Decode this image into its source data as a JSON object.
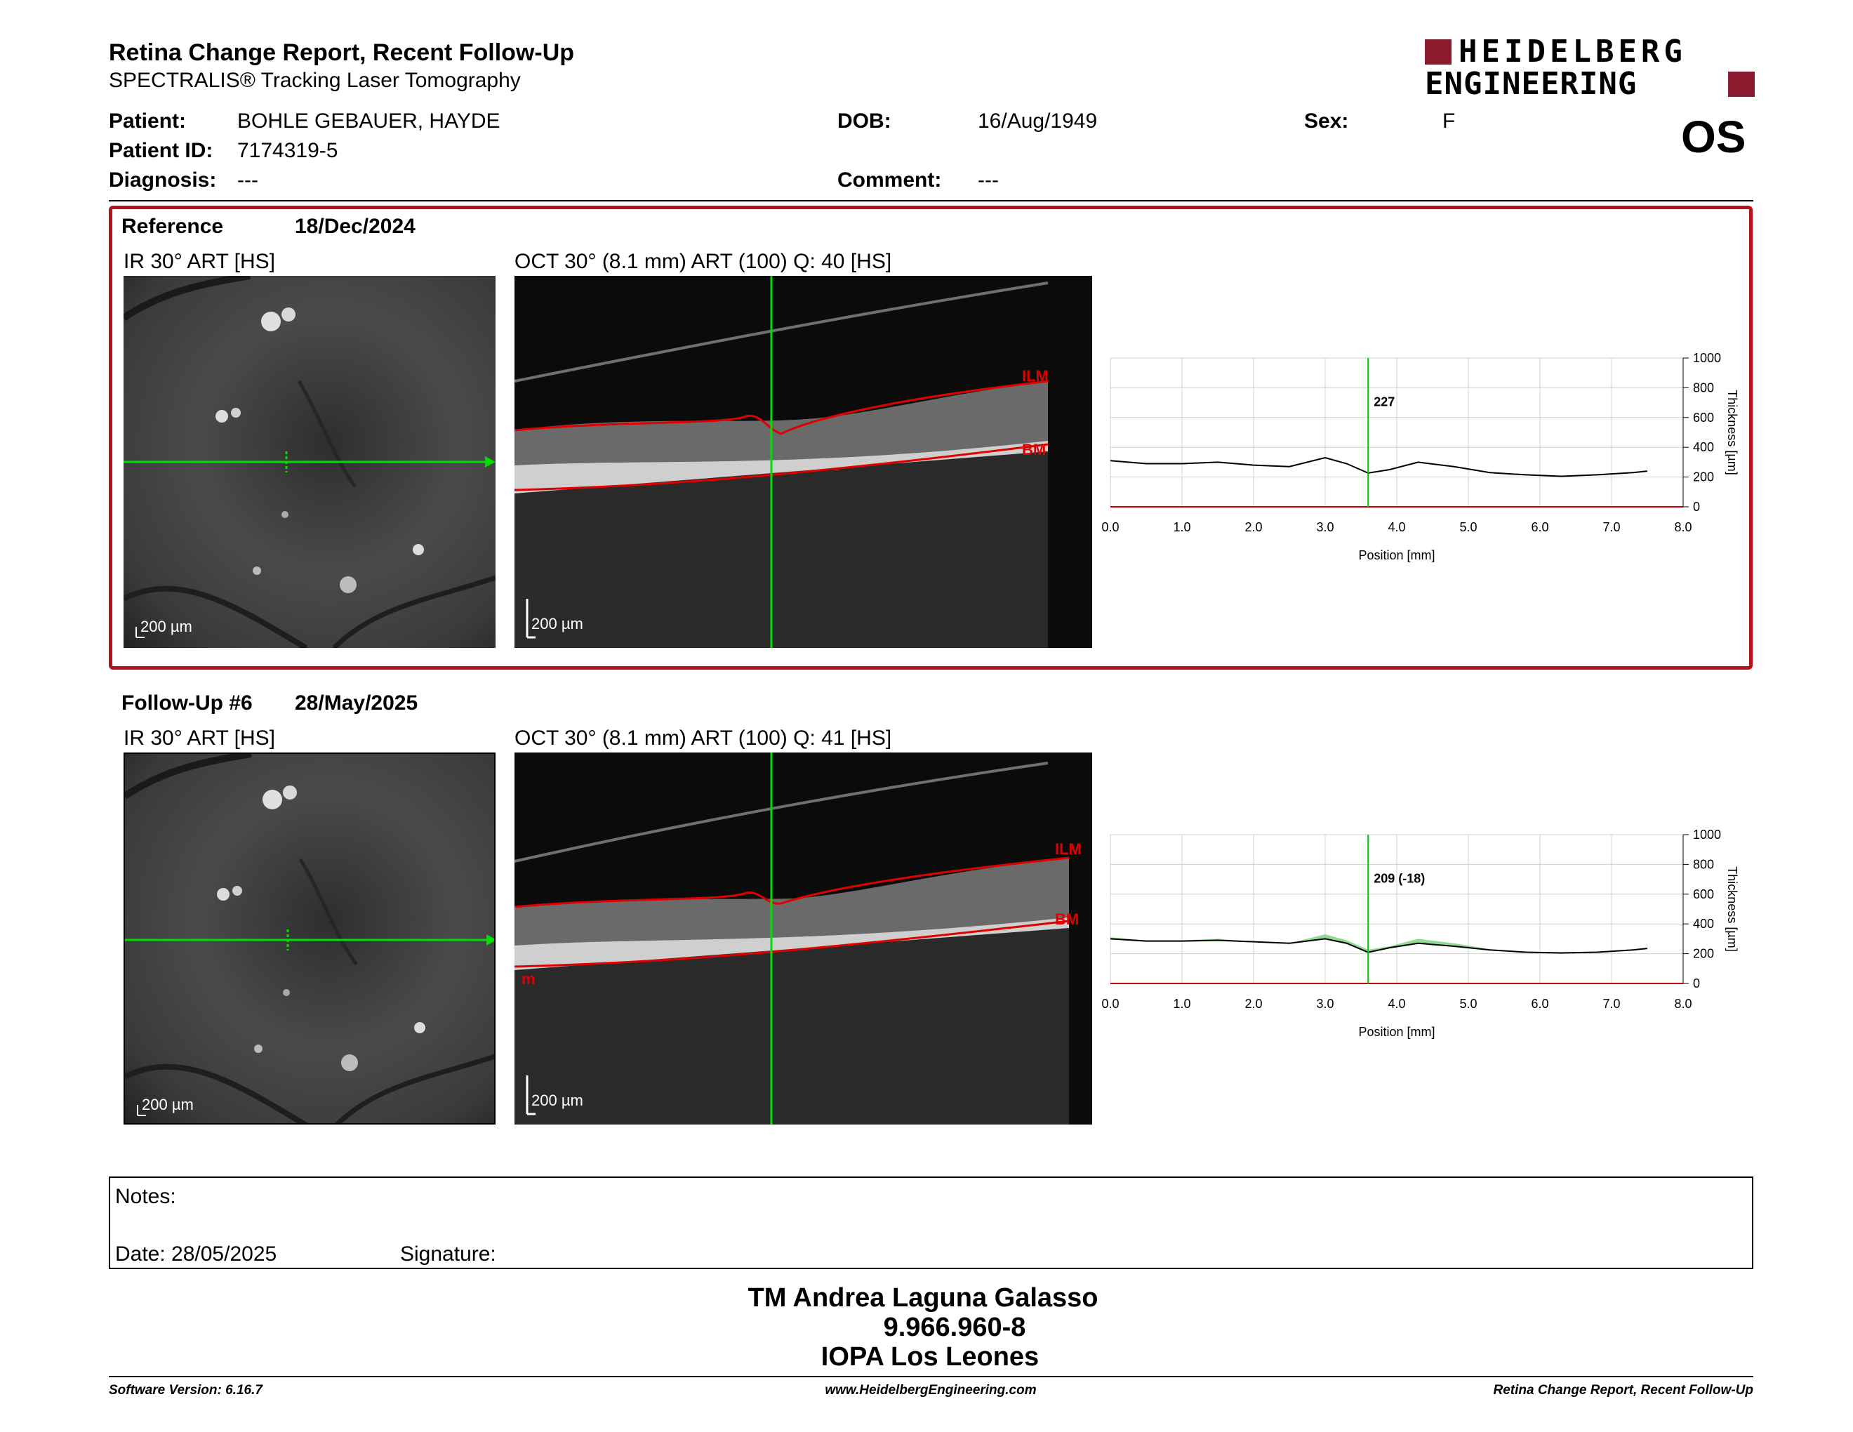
{
  "header": {
    "report_title": "Retina Change Report, Recent Follow-Up",
    "device": "SPECTRALIS® Tracking Laser Tomography",
    "logo_line1": "HEIDELBERG",
    "logo_line2": "ENGINEERING",
    "eye": "OS"
  },
  "patient": {
    "patient_label": "Patient:",
    "patient_name": "BOHLE GEBAUER, HAYDE",
    "id_label": "Patient ID:",
    "id": "7174319-5",
    "diagnosis_label": "Diagnosis:",
    "diagnosis": "---",
    "dob_label": "DOB:",
    "dob": "16/Aug/1949",
    "comment_label": "Comment:",
    "comment": "---",
    "sex_label": "Sex:",
    "sex": "F"
  },
  "reference": {
    "label": "Reference",
    "date": "18/Dec/2024",
    "ir_title": "IR 30° ART [HS]",
    "oct_title": "OCT 30° (8.1 mm) ART (100) Q: 40 [HS]",
    "ir_scale": "200 µm",
    "oct_scale": "200 µm",
    "ilm_label": "ILM",
    "bm_label": "BM"
  },
  "followup": {
    "label": "Follow-Up #6",
    "date": "28/May/2025",
    "ir_title": "IR 30° ART [HS]",
    "oct_title": "OCT 30° (8.1 mm) ART (100) Q: 41 [HS]",
    "ir_scale": "200 µm",
    "oct_scale": "200 µm",
    "ilm_label": "ILM",
    "bm_label": "BM",
    "edge_label": "m"
  },
  "chart_data": [
    {
      "type": "line",
      "x": [
        0.0,
        0.5,
        1.0,
        1.5,
        2.0,
        2.5,
        3.0,
        3.3,
        3.6,
        3.9,
        4.3,
        4.8,
        5.3,
        5.8,
        6.3,
        6.8,
        7.3,
        7.5
      ],
      "series": [
        {
          "values": [
            310,
            290,
            290,
            300,
            280,
            270,
            330,
            290,
            227,
            250,
            300,
            270,
            230,
            215,
            205,
            215,
            230,
            240
          ]
        }
      ],
      "xlabel": "Position [mm]",
      "ylabel": "Thickness [µm]",
      "xlim": [
        0.0,
        8.0
      ],
      "ylim": [
        0,
        1000
      ],
      "x_ticks": [
        "0.0",
        "1.0",
        "2.0",
        "3.0",
        "4.0",
        "5.0",
        "6.0",
        "7.0",
        "8.0"
      ],
      "y_ticks": [
        "0",
        "200",
        "400",
        "600",
        "800",
        "1000"
      ],
      "cursor_x": 3.6,
      "cursor_value": "227",
      "grid": true,
      "colors": {
        "line": "#000000",
        "cursor": "#00c800",
        "axis_base": "#c00000"
      }
    },
    {
      "type": "line",
      "x": [
        0.0,
        0.5,
        1.0,
        1.5,
        2.0,
        2.5,
        3.0,
        3.3,
        3.6,
        3.9,
        4.3,
        4.8,
        5.3,
        5.8,
        6.3,
        6.8,
        7.3,
        7.5
      ],
      "series": [
        {
          "values": [
            300,
            285,
            285,
            290,
            280,
            270,
            300,
            270,
            209,
            240,
            270,
            250,
            225,
            210,
            205,
            210,
            225,
            235
          ]
        }
      ],
      "reference_values": [
        310,
        290,
        290,
        300,
        280,
        270,
        330,
        290,
        227,
        250,
        300,
        270,
        230,
        215,
        205,
        215,
        230,
        240
      ],
      "xlabel": "Position [mm]",
      "ylabel": "Thickness [µm]",
      "xlim": [
        0.0,
        8.0
      ],
      "ylim": [
        0,
        1000
      ],
      "x_ticks": [
        "0.0",
        "1.0",
        "2.0",
        "3.0",
        "4.0",
        "5.0",
        "6.0",
        "7.0",
        "8.0"
      ],
      "y_ticks": [
        "0",
        "200",
        "400",
        "600",
        "800",
        "1000"
      ],
      "cursor_x": 3.6,
      "cursor_value": "209 (-18)",
      "grid": true,
      "colors": {
        "line": "#000000",
        "cursor": "#00c800",
        "diff_fill": "#7fd27f",
        "axis_base": "#c00000"
      }
    }
  ],
  "notes": {
    "notes_label": "Notes:",
    "date_label": "Date: 28/05/2025",
    "signature_label": "Signature:"
  },
  "signatory": {
    "name": "TM Andrea Laguna Galasso",
    "rut": "9.966.960-8",
    "institution": "IOPA Los Leones"
  },
  "footer": {
    "software": "Software Version: 6.16.7",
    "website": "www.HeidelbergEngineering.com",
    "report_name": "Retina Change Report, Recent Follow-Up"
  }
}
